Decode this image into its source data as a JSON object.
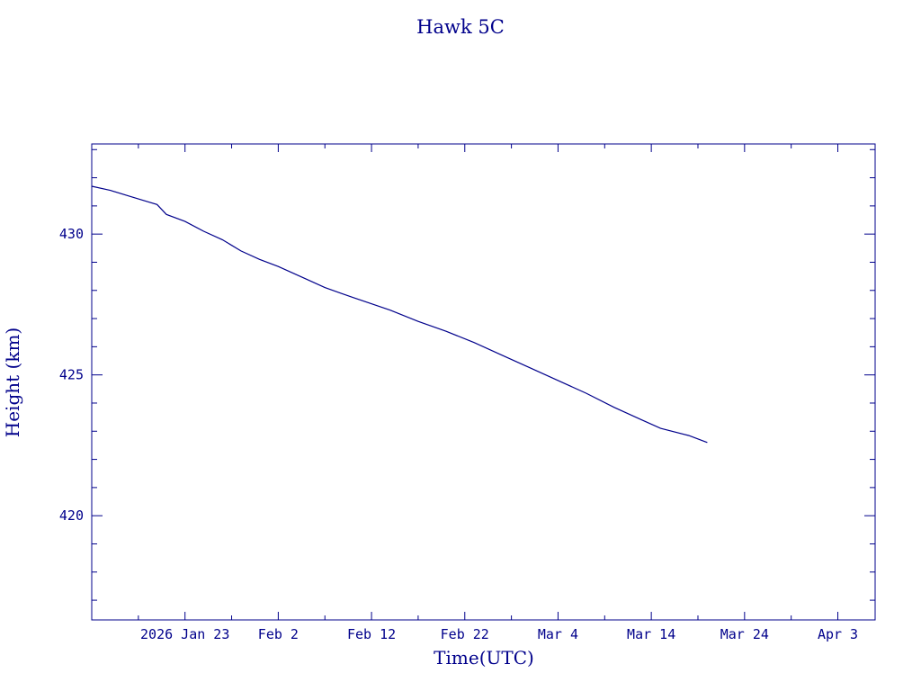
{
  "chart_data": {
    "type": "line",
    "title": "Hawk 5C",
    "xlabel": "Time(UTC)",
    "ylabel": "Height (km)",
    "xlim": [
      "2026-01-13",
      "2026-04-07"
    ],
    "ylim": [
      416.3,
      433.2
    ],
    "grid": false,
    "x_ticks": [
      {
        "date": "2026-01-23",
        "label": "2026 Jan 23"
      },
      {
        "date": "2026-02-02",
        "label": "Feb  2"
      },
      {
        "date": "2026-02-12",
        "label": "Feb 12"
      },
      {
        "date": "2026-02-22",
        "label": "Feb 22"
      },
      {
        "date": "2026-03-04",
        "label": "Mar  4"
      },
      {
        "date": "2026-03-14",
        "label": "Mar 14"
      },
      {
        "date": "2026-03-24",
        "label": "Mar 24"
      },
      {
        "date": "2026-04-03",
        "label": "Apr  3"
      }
    ],
    "y_ticks": [
      420,
      425,
      430
    ],
    "y_ticks_minor": [
      417,
      418,
      419,
      421,
      422,
      423,
      424,
      426,
      427,
      428,
      429,
      431,
      432,
      433
    ],
    "series": [
      {
        "name": "",
        "color": "#00008b",
        "points": [
          {
            "x": "2026-01-13",
            "y": 431.7
          },
          {
            "x": "2026-01-15",
            "y": 431.55
          },
          {
            "x": "2026-01-17",
            "y": 431.35
          },
          {
            "x": "2026-01-19",
            "y": 431.15
          },
          {
            "x": "2026-01-20",
            "y": 431.05
          },
          {
            "x": "2026-01-21",
            "y": 430.7
          },
          {
            "x": "2026-01-23",
            "y": 430.45
          },
          {
            "x": "2026-01-25",
            "y": 430.1
          },
          {
            "x": "2026-01-27",
            "y": 429.8
          },
          {
            "x": "2026-01-29",
            "y": 429.4
          },
          {
            "x": "2026-01-31",
            "y": 429.1
          },
          {
            "x": "2026-02-02",
            "y": 428.85
          },
          {
            "x": "2026-02-05",
            "y": 428.4
          },
          {
            "x": "2026-02-07",
            "y": 428.1
          },
          {
            "x": "2026-02-10",
            "y": 427.75
          },
          {
            "x": "2026-02-14",
            "y": 427.3
          },
          {
            "x": "2026-02-17",
            "y": 426.9
          },
          {
            "x": "2026-02-20",
            "y": 426.55
          },
          {
            "x": "2026-02-23",
            "y": 426.15
          },
          {
            "x": "2026-02-26",
            "y": 425.7
          },
          {
            "x": "2026-03-01",
            "y": 425.25
          },
          {
            "x": "2026-03-04",
            "y": 424.8
          },
          {
            "x": "2026-03-07",
            "y": 424.35
          },
          {
            "x": "2026-03-10",
            "y": 423.85
          },
          {
            "x": "2026-03-13",
            "y": 423.4
          },
          {
            "x": "2026-03-15",
            "y": 423.1
          },
          {
            "x": "2026-03-18",
            "y": 422.85
          },
          {
            "x": "2026-03-20",
            "y": 422.6
          }
        ]
      }
    ]
  }
}
